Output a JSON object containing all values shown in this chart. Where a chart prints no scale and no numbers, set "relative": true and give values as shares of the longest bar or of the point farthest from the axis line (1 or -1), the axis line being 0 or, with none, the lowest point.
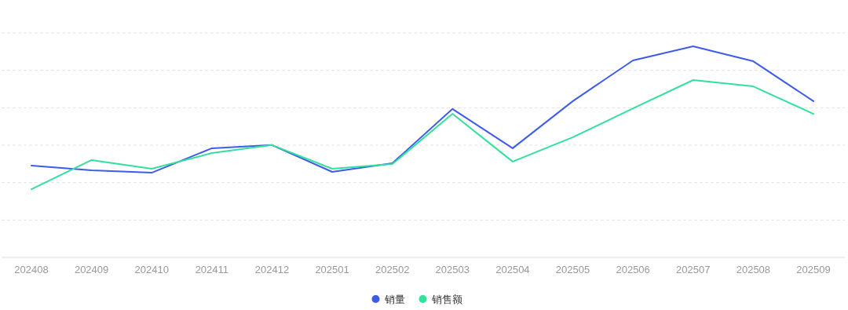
{
  "chart_data": {
    "type": "line",
    "relative": true,
    "grid": true,
    "legend": "bottom",
    "marker": "none",
    "line_style": "solid",
    "categories": [
      "202408",
      "202409",
      "202410",
      "202411",
      "202412",
      "202501",
      "202502",
      "202503",
      "202504",
      "202505",
      "202506",
      "202507",
      "202508",
      "202509"
    ],
    "series": [
      {
        "name": "销量",
        "color": "#3d5ce8",
        "values": [
          0.435,
          0.413,
          0.401,
          0.517,
          0.532,
          0.405,
          0.446,
          0.703,
          0.517,
          0.74,
          0.933,
          1,
          0.929,
          0.74
        ]
      },
      {
        "name": "销售额",
        "color": "#33e09c",
        "values": [
          0.323,
          0.461,
          0.42,
          0.494,
          0.532,
          0.42,
          0.442,
          0.68,
          0.454,
          0.569,
          0.706,
          0.84,
          0.81,
          0.68
        ]
      }
    ]
  }
}
